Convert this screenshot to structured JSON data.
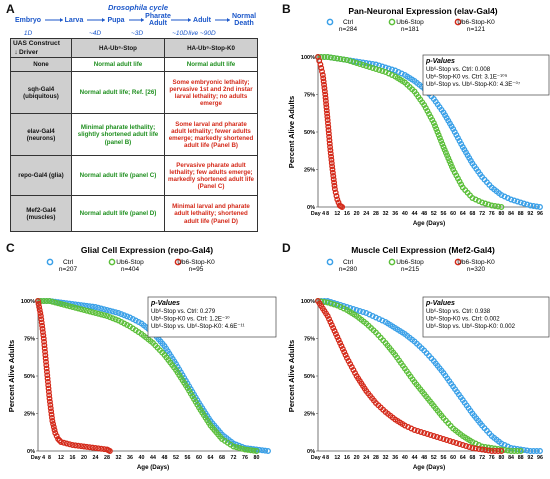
{
  "panelA": {
    "letter": "A",
    "cycle_title": "Drosophila cycle",
    "stages": [
      "Embryo",
      "Larva",
      "Pupa",
      "Pharate Adult",
      "Adult",
      "Normal Death"
    ],
    "durations": [
      "1D",
      "~4D",
      "~3D",
      "~10D",
      "live ~90D",
      ""
    ],
    "table": {
      "corner_top": "UAS Construct",
      "corner_bottom": "Driver",
      "col1": "HA-Ub⁶-Stop",
      "col2": "HA-Ub⁶-Stop-K0",
      "rows": [
        {
          "driver": "None",
          "c1": "Normal adult life",
          "c2": "Normal adult life"
        },
        {
          "driver": "sqh-Gal4 (ubiquitous)",
          "c1": "Normal adult life; Ref. [26]",
          "c2": "Some embryonic lethality; pervasive 1st and 2nd instar larval lethality; no adults emerge"
        },
        {
          "driver": "elav-Gal4 (neurons)",
          "c1": "Minimal pharate lethality; slightly shortened adult life (panel B)",
          "c2": "Some larval and pharate adult lethality; fewer adults emerge; markedly shortened adult life (Panel B)"
        },
        {
          "driver": "repo-Gal4 (glia)",
          "c1": "Normal adult life (panel C)",
          "c2": "Pervasive pharate adult lethality; few adults emerge; markedly shortened adult life (Panel C)"
        },
        {
          "driver": "Mef2-Gal4 (muscles)",
          "c1": "Normal adult life (panel D)",
          "c2": "Minimal larval and pharate adult lethality; shortened adult life (Panel D)"
        }
      ]
    }
  },
  "chart_data": [
    {
      "panel": "B",
      "type": "scatter",
      "title": "Pan-Neuronal Expression (elav-Gal4)",
      "xlabel": "Age (Days)",
      "ylabel": "Percent Alive Adults",
      "xlim": [
        4,
        96
      ],
      "ylim": [
        0,
        100
      ],
      "xticks": [
        "Day 4",
        "8",
        "12",
        "16",
        "20",
        "24",
        "28",
        "32",
        "36",
        "40",
        "44",
        "48",
        "52",
        "56",
        "60",
        "64",
        "68",
        "72",
        "76",
        "80",
        "84",
        "88",
        "92",
        "96"
      ],
      "yticks": [
        "0%",
        "25%",
        "50%",
        "75%",
        "100%"
      ],
      "series": [
        {
          "name": "Ctrl",
          "n": "n=284",
          "color": "#3aa0e8",
          "x": [
            4,
            8,
            12,
            16,
            20,
            24,
            28,
            32,
            36,
            40,
            44,
            48,
            52,
            56,
            60,
            64,
            68,
            72,
            76,
            80,
            84,
            88,
            92,
            96
          ],
          "y": [
            100,
            100,
            99,
            98,
            97,
            96,
            95,
            93,
            91,
            88,
            84,
            79,
            72,
            63,
            52,
            40,
            29,
            20,
            13,
            8,
            5,
            3,
            1,
            0
          ]
        },
        {
          "name": "Ub6-Stop",
          "n": "n=181",
          "color": "#5cbf3a",
          "x": [
            4,
            8,
            12,
            16,
            20,
            24,
            28,
            32,
            36,
            40,
            44,
            48,
            52,
            56,
            60,
            64,
            68,
            72,
            76,
            80
          ],
          "y": [
            100,
            100,
            99,
            98,
            96,
            94,
            92,
            90,
            87,
            83,
            77,
            68,
            56,
            40,
            25,
            13,
            6,
            3,
            1,
            0
          ]
        },
        {
          "name": "Ub6-Stop-K0",
          "n": "n=121",
          "color": "#d42a1a",
          "x": [
            4,
            5,
            6,
            7,
            8,
            9,
            10,
            11,
            12,
            13,
            14
          ],
          "y": [
            100,
            95,
            88,
            75,
            58,
            40,
            25,
            12,
            5,
            1,
            0
          ]
        }
      ],
      "pvalues": {
        "label": "p-Values",
        "lines": [
          "Ub⁶-Stop vs. Ctrl: 0.008",
          "Ub⁶-Stop-K0 vs. Ctrl: 3.1E⁻¹⁰⁹",
          "Ub⁶-Stop vs. Ub⁶-Stop-K0: 4.3E⁻⁰⁷"
        ]
      }
    },
    {
      "panel": "C",
      "type": "scatter",
      "title": "Glial Cell Expression (repo-Gal4)",
      "xlabel": "Age (Days)",
      "ylabel": "Percent Alive Adults",
      "xlim": [
        4,
        84
      ],
      "ylim": [
        0,
        100
      ],
      "xticks": [
        "Day 4",
        "8",
        "12",
        "16",
        "20",
        "24",
        "28",
        "32",
        "36",
        "40",
        "44",
        "48",
        "52",
        "56",
        "60",
        "64",
        "68",
        "72",
        "76",
        "80"
      ],
      "yticks": [
        "0%",
        "25%",
        "50%",
        "75%",
        "100%"
      ],
      "series": [
        {
          "name": "Ctrl",
          "n": "n=207",
          "color": "#3aa0e8",
          "x": [
            4,
            8,
            12,
            16,
            20,
            24,
            28,
            32,
            36,
            40,
            44,
            48,
            52,
            56,
            60,
            64,
            68,
            72,
            76,
            80,
            84
          ],
          "y": [
            100,
            100,
            99,
            98,
            97,
            96,
            94,
            92,
            89,
            85,
            79,
            70,
            58,
            45,
            32,
            20,
            11,
            5,
            2,
            1,
            0
          ]
        },
        {
          "name": "Ub6-Stop",
          "n": "n=404",
          "color": "#5cbf3a",
          "x": [
            4,
            8,
            12,
            16,
            20,
            24,
            28,
            32,
            36,
            40,
            44,
            48,
            52,
            56,
            60,
            64,
            68,
            72,
            76,
            80
          ],
          "y": [
            100,
            100,
            98,
            96,
            94,
            92,
            90,
            87,
            83,
            78,
            72,
            64,
            54,
            42,
            29,
            17,
            8,
            3,
            1,
            0
          ]
        },
        {
          "name": "Ub6-Stop-K0",
          "n": "n=95",
          "color": "#d42a1a",
          "x": [
            4,
            5,
            6,
            7,
            8,
            9,
            10,
            11,
            12,
            14,
            16,
            20,
            24,
            28,
            29
          ],
          "y": [
            100,
            90,
            75,
            55,
            35,
            20,
            12,
            8,
            6,
            5,
            4,
            3,
            2,
            1,
            0
          ]
        }
      ],
      "pvalues": {
        "label": "p-Values",
        "lines": [
          "Ub⁶-Stop vs. Ctrl: 0.279",
          "Ub⁶-Stop-K0 vs. Ctrl: 1.2E⁻¹⁰",
          "Ub⁶-Stop vs. Ub⁶-Stop-K0: 4.6E⁻¹¹"
        ]
      }
    },
    {
      "panel": "D",
      "type": "scatter",
      "title": "Muscle Cell Expression (Mef2-Gal4)",
      "xlabel": "Age (Days)",
      "ylabel": "Percent Alive Adults",
      "xlim": [
        4,
        96
      ],
      "ylim": [
        0,
        100
      ],
      "xticks": [
        "Day 4",
        "8",
        "12",
        "16",
        "20",
        "24",
        "28",
        "32",
        "36",
        "40",
        "44",
        "48",
        "52",
        "56",
        "60",
        "64",
        "68",
        "72",
        "76",
        "80",
        "84",
        "88",
        "92",
        "96"
      ],
      "yticks": [
        "0%",
        "25%",
        "50%",
        "75%",
        "100%"
      ],
      "series": [
        {
          "name": "Ctrl",
          "n": "n=280",
          "color": "#3aa0e8",
          "x": [
            4,
            8,
            12,
            16,
            20,
            24,
            28,
            32,
            36,
            40,
            44,
            48,
            52,
            56,
            60,
            64,
            68,
            72,
            76,
            80,
            84,
            88,
            92,
            96
          ],
          "y": [
            100,
            100,
            98,
            96,
            94,
            92,
            89,
            86,
            82,
            78,
            73,
            67,
            60,
            52,
            43,
            34,
            25,
            17,
            10,
            5,
            2,
            1,
            0,
            0
          ]
        },
        {
          "name": "Ub6-Stop",
          "n": "n=215",
          "color": "#5cbf3a",
          "x": [
            4,
            8,
            12,
            16,
            20,
            24,
            28,
            32,
            36,
            40,
            44,
            48,
            52,
            56,
            60,
            64,
            68,
            72,
            76,
            80,
            84,
            88
          ],
          "y": [
            100,
            99,
            97,
            94,
            90,
            85,
            79,
            72,
            64,
            55,
            46,
            38,
            30,
            22,
            15,
            10,
            6,
            3,
            2,
            1,
            0,
            0
          ]
        },
        {
          "name": "Ub6-Stop-K0",
          "n": "n=320",
          "color": "#d42a1a",
          "x": [
            4,
            8,
            12,
            16,
            20,
            24,
            28,
            32,
            36,
            40,
            44,
            48,
            52,
            56,
            60,
            64,
            68,
            72,
            76,
            80
          ],
          "y": [
            100,
            90,
            76,
            62,
            50,
            40,
            32,
            26,
            21,
            17,
            14,
            12,
            10,
            8,
            6,
            4,
            2,
            1,
            0,
            0
          ]
        }
      ],
      "pvalues": {
        "label": "p-Values",
        "lines": [
          "Ub⁶-Stop vs. Ctrl: 0.938",
          "Ub⁶-Stop-K0 vs. Ctrl: 0.002",
          "Ub⁶-Stop vs. Ub⁶-Stop-K0: 0.002"
        ]
      }
    }
  ]
}
